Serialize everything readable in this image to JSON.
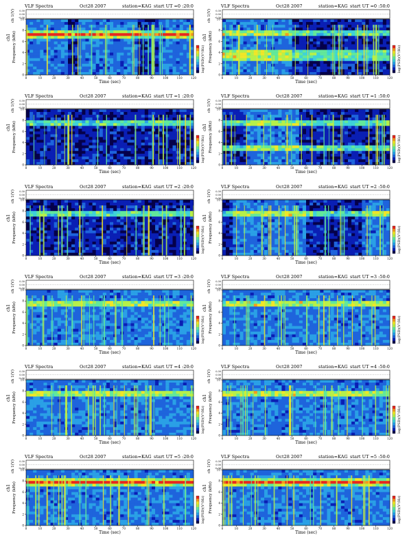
{
  "page": {
    "background": "#ffffff"
  },
  "colormap": [
    "#05004a",
    "#0a1fb4",
    "#1e64dc",
    "#2aa0e6",
    "#3fd2d8",
    "#62e89a",
    "#b6f04a",
    "#f0e628",
    "#f59a1e",
    "#e8281e"
  ],
  "chart_data": [
    {
      "type": "heatmap",
      "title": "VLF Spectra",
      "date": "Oct28 2007",
      "station": "station=KAG",
      "start_ut": "start  UT =0 :20:0",
      "top_ylabel": "ch 1(V)",
      "top_ticks": [
        "0.30",
        "0.00",
        "-0.30"
      ],
      "ylabel": "Frequency  (kHz)",
      "ylabel_ch": "ch1",
      "xlabel": "Time  (sec)",
      "x_ticks": [
        0,
        10,
        20,
        30,
        40,
        50,
        60,
        70,
        80,
        90,
        100,
        110,
        120
      ],
      "xlim": [
        0,
        120
      ],
      "y_ticks": [
        0,
        2,
        4,
        6,
        8,
        10
      ],
      "ylim": [
        0,
        10
      ],
      "colorbar_label": "log(PSD)(V²/Hz)",
      "dark_intervals": [
        [
          29,
          37
        ],
        [
          80,
          96
        ]
      ],
      "emission_bands_khz": [
        7.0,
        7.4
      ]
    },
    {
      "type": "heatmap",
      "title": "VLF Spectra",
      "date": "Oct28 2007",
      "station": "station=KAG",
      "start_ut": "start  UT =0 :50:0",
      "top_ylabel": "ch 1(V)",
      "top_ticks": [
        "0.30",
        "0.00",
        "-0.30"
      ],
      "ylabel": "Frequency  (kHz)",
      "ylabel_ch": "ch1",
      "xlabel": "Time  (sec)",
      "x_ticks": [
        0,
        10,
        20,
        30,
        40,
        50,
        60,
        70,
        80,
        90,
        100,
        110,
        120
      ],
      "xlim": [
        0,
        120
      ],
      "y_ticks": [
        0,
        2,
        4,
        6,
        8,
        10
      ],
      "ylim": [
        0,
        10
      ],
      "colorbar_label": "log(PSD)(V²/Hz)",
      "dark_intervals": [
        [
          50,
          120
        ]
      ],
      "emission_bands_khz": [
        3.2,
        4.0,
        7.4
      ]
    },
    {
      "type": "heatmap",
      "title": "VLF Spectra",
      "date": "Oct28 2007",
      "station": "station=KAG",
      "start_ut": "start  UT =1 :20:0",
      "top_ylabel": "ch 1(V)",
      "top_ticks": [
        "0.30",
        "0.00",
        "-0.30"
      ],
      "ylabel": "Frequency  (kHz)",
      "ylabel_ch": "ch1",
      "xlabel": "Time  (sec)",
      "x_ticks": [
        0,
        10,
        20,
        30,
        40,
        50,
        60,
        70,
        80,
        90,
        100,
        110,
        120
      ],
      "xlim": [
        0,
        120
      ],
      "y_ticks": [
        0,
        2,
        4,
        6,
        8,
        10
      ],
      "ylim": [
        0,
        10
      ],
      "colorbar_label": "log(PSD)(V²/Hz)",
      "dark_intervals": [
        [
          0,
          120
        ]
      ],
      "emission_bands_khz": [
        7.4
      ]
    },
    {
      "type": "heatmap",
      "title": "VLF Spectra",
      "date": "Oct28 2007",
      "station": "station=KAG",
      "start_ut": "start  UT =1 :50:0",
      "top_ylabel": "ch 1(V)",
      "top_ticks": [
        "0.30",
        "0.00",
        "-0.30"
      ],
      "ylabel": "Frequency  (kHz)",
      "ylabel_ch": "ch1",
      "xlabel": "Time  (sec)",
      "x_ticks": [
        0,
        10,
        20,
        30,
        40,
        50,
        60,
        70,
        80,
        90,
        100,
        110,
        120
      ],
      "xlim": [
        0,
        120
      ],
      "y_ticks": [
        0,
        2,
        4,
        6,
        8,
        10
      ],
      "ylim": [
        0,
        10
      ],
      "colorbar_label": "log(PSD)(V²/Hz)",
      "dark_intervals": [
        [
          0,
          18
        ],
        [
          56,
          120
        ]
      ],
      "emission_bands_khz": [
        3.2,
        7.4
      ]
    },
    {
      "type": "heatmap",
      "title": "VLF Spectra",
      "date": "Oct28 2007",
      "station": "station=KAG",
      "start_ut": "start  UT =2 :20:0",
      "top_ylabel": "ch 1(V)",
      "top_ticks": [
        "0.30",
        "0.00",
        "-0.30"
      ],
      "ylabel": "Frequency  (kHz)",
      "ylabel_ch": "ch1",
      "xlabel": "Time  (sec)",
      "x_ticks": [
        0,
        10,
        20,
        30,
        40,
        50,
        60,
        70,
        80,
        90,
        100,
        110,
        120
      ],
      "xlim": [
        0,
        120
      ],
      "y_ticks": [
        0,
        2,
        4,
        6,
        8,
        10
      ],
      "ylim": [
        0,
        10
      ],
      "colorbar_label": "log(PSD)(V²/Hz)",
      "dark_intervals": [
        [
          0,
          120
        ]
      ],
      "emission_bands_khz": [
        7.4
      ]
    },
    {
      "type": "heatmap",
      "title": "VLF Spectra",
      "date": "Oct28 2007",
      "station": "station=KAG",
      "start_ut": "start  UT =2 :50:0",
      "top_ylabel": "ch 1(V)",
      "top_ticks": [
        "0.30",
        "0.00",
        "-0.30"
      ],
      "ylabel": "Frequency  (kHz)",
      "ylabel_ch": "ch1",
      "xlabel": "Time  (sec)",
      "x_ticks": [
        0,
        10,
        20,
        30,
        40,
        50,
        60,
        70,
        80,
        90,
        100,
        110,
        120
      ],
      "xlim": [
        0,
        120
      ],
      "y_ticks": [
        0,
        2,
        4,
        6,
        8,
        10
      ],
      "ylim": [
        0,
        10
      ],
      "colorbar_label": "log(PSD)(V²/Hz)",
      "dark_intervals": [
        [
          0,
          8
        ],
        [
          60,
          100
        ]
      ],
      "emission_bands_khz": [
        7.4
      ]
    },
    {
      "type": "heatmap",
      "title": "VLF Spectra",
      "date": "Oct28 2007",
      "station": "station=KAG",
      "start_ut": "start  UT =3 :20:0",
      "top_ylabel": "ch 1(V)",
      "top_ticks": [
        "0.30",
        "0.00",
        "-0.30"
      ],
      "ylabel": "Frequency  (kHz)",
      "ylabel_ch": "ch1",
      "xlabel": "Time  (sec)",
      "x_ticks": [
        0,
        10,
        20,
        30,
        40,
        50,
        60,
        70,
        80,
        90,
        100,
        110,
        120
      ],
      "xlim": [
        0,
        120
      ],
      "y_ticks": [
        0,
        2,
        4,
        6,
        8,
        10
      ],
      "ylim": [
        0,
        10
      ],
      "colorbar_label": "log(PSD)(V²/Hz)",
      "dark_intervals": [],
      "emission_bands_khz": [
        7.4
      ]
    },
    {
      "type": "heatmap",
      "title": "VLF Spectra",
      "date": "Oct28 2007",
      "station": "station=KAG",
      "start_ut": "start  UT =3 :50:0",
      "top_ylabel": "ch 1(V)",
      "top_ticks": [
        "0.30",
        "0.00",
        "-0.30"
      ],
      "ylabel": "Frequency  (kHz)",
      "ylabel_ch": "ch1",
      "xlabel": "Time  (sec)",
      "x_ticks": [
        0,
        10,
        20,
        30,
        40,
        50,
        60,
        70,
        80,
        90,
        100,
        110,
        120
      ],
      "xlim": [
        0,
        120
      ],
      "y_ticks": [
        0,
        2,
        4,
        6,
        8,
        10
      ],
      "ylim": [
        0,
        10
      ],
      "colorbar_label": "log(PSD)(V²/Hz)",
      "dark_intervals": [],
      "emission_bands_khz": [
        7.4
      ]
    },
    {
      "type": "heatmap",
      "title": "VLF Spectra",
      "date": "Oct28 2007",
      "station": "station=KAG",
      "start_ut": "start  UT =4 :20:0",
      "top_ylabel": "ch 1(V)",
      "top_ticks": [
        "0.30",
        "0.00",
        "-0.30"
      ],
      "ylabel": "Frequency  (kHz)",
      "ylabel_ch": "ch1",
      "xlabel": "Time  (sec)",
      "x_ticks": [
        0,
        10,
        20,
        30,
        40,
        50,
        60,
        70,
        80,
        90,
        100,
        110,
        120
      ],
      "xlim": [
        0,
        120
      ],
      "y_ticks": [
        0,
        2,
        4,
        6,
        8,
        10
      ],
      "ylim": [
        0,
        10
      ],
      "colorbar_label": "log(PSD)(V²/Hz)",
      "dark_intervals": [],
      "emission_bands_khz": [
        7.4
      ]
    },
    {
      "type": "heatmap",
      "title": "VLF Spectra",
      "date": "Oct28 2007",
      "station": "station=KAG",
      "start_ut": "start  UT =4 :50:0",
      "top_ylabel": "ch 1(V)",
      "top_ticks": [
        "0.30",
        "0.00",
        "-0.30"
      ],
      "ylabel": "Frequency  (kHz)",
      "ylabel_ch": "ch1",
      "xlabel": "Time  (sec)",
      "x_ticks": [
        0,
        10,
        20,
        30,
        40,
        50,
        60,
        70,
        80,
        90,
        100,
        110,
        120
      ],
      "xlim": [
        0,
        120
      ],
      "y_ticks": [
        0,
        2,
        4,
        6,
        8,
        10
      ],
      "ylim": [
        0,
        10
      ],
      "colorbar_label": "log(PSD)(V²/Hz)",
      "dark_intervals": [],
      "emission_bands_khz": [
        7.4
      ]
    },
    {
      "type": "heatmap",
      "title": "VLF Spectra",
      "date": "Oct28 2007",
      "station": "station=KAG",
      "start_ut": "start  UT =5 :20:0",
      "top_ylabel": "ch 1(V)",
      "top_ticks": [
        "0.30",
        "0.00",
        "-0.30"
      ],
      "ylabel": "Frequency  (kHz)",
      "ylabel_ch": "ch1",
      "xlabel": "Time  (sec)",
      "x_ticks": [
        0,
        10,
        20,
        30,
        40,
        50,
        60,
        70,
        80,
        90,
        100,
        110,
        120
      ],
      "xlim": [
        0,
        120
      ],
      "y_ticks": [
        0,
        2,
        4,
        6,
        8,
        10
      ],
      "ylim": [
        0,
        10
      ],
      "colorbar_label": "log(PSD)(V²/Hz)",
      "dark_intervals": [],
      "emission_bands_khz": [
        7.4,
        8.0
      ]
    },
    {
      "type": "heatmap",
      "title": "VLF Spectra",
      "date": "Oct28 2007",
      "station": "station=KAG",
      "start_ut": "start  UT =5 :50:0",
      "top_ylabel": "ch 1(V)",
      "top_ticks": [
        "0.30",
        "0.00",
        "-0.30"
      ],
      "ylabel": "Frequency  (kHz)",
      "ylabel_ch": "ch1",
      "xlabel": "Time  (sec)",
      "x_ticks": [
        0,
        10,
        20,
        30,
        40,
        50,
        60,
        70,
        80,
        90,
        100,
        110,
        120
      ],
      "xlim": [
        0,
        120
      ],
      "y_ticks": [
        0,
        2,
        4,
        6,
        8,
        10
      ],
      "ylim": [
        0,
        10
      ],
      "colorbar_label": "log(PSD)(V²/Hz)",
      "dark_intervals": [],
      "emission_bands_khz": [
        7.4,
        8.0
      ]
    }
  ]
}
